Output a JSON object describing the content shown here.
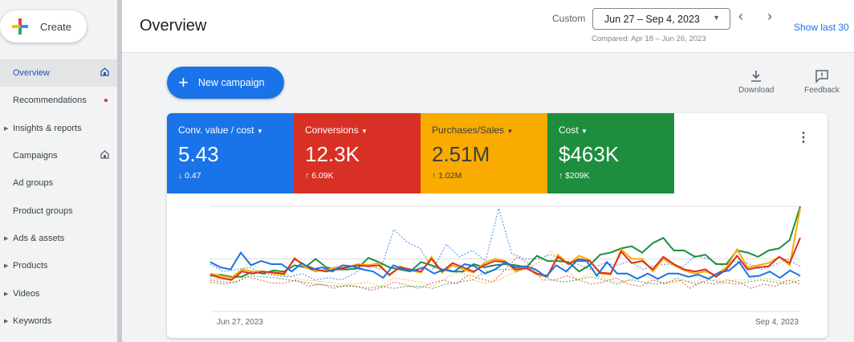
{
  "sidebar": {
    "create_label": "Create",
    "items": [
      {
        "label": "Overview",
        "active": true,
        "icon": "home-icon"
      },
      {
        "label": "Recommendations",
        "dot": true
      },
      {
        "label": "Insights & reports",
        "expandable": true
      },
      {
        "label": "Campaigns",
        "icon": "home-icon"
      },
      {
        "label": "Ad groups"
      },
      {
        "label": "Product groups"
      },
      {
        "label": "Ads & assets",
        "expandable": true
      },
      {
        "label": "Products",
        "expandable": true
      },
      {
        "label": "Videos",
        "expandable": true
      },
      {
        "label": "Keywords",
        "expandable": true
      }
    ]
  },
  "header": {
    "title": "Overview",
    "custom_label": "Custom",
    "date_range": "Jun 27 – Sep 4, 2023",
    "compared": "Compared: Apr 18 – Jun 26, 2023",
    "show_last": "Show last 30"
  },
  "toolbar": {
    "new_campaign": "New campaign",
    "download": "Download",
    "feedback": "Feedback"
  },
  "metrics": [
    {
      "label": "Conv. value / cost",
      "value": "5.43",
      "change": "↓ 0.47",
      "color": "#1a73e8"
    },
    {
      "label": "Conversions",
      "value": "12.3K",
      "change": "↑ 6.09K",
      "color": "#d93025"
    },
    {
      "label": "Purchases/Sales",
      "value": "2.51M",
      "change": "↑ 1.02M",
      "color": "#f9ab00"
    },
    {
      "label": "Cost",
      "value": "$463K",
      "change": "↑ $209K",
      "color": "#1e8e3e"
    }
  ],
  "chart_data": {
    "type": "line",
    "x_start": "Jun 27, 2023",
    "x_end": "Sep 4, 2023",
    "ylim": [
      0,
      100
    ],
    "grid": true,
    "series": [
      {
        "name": "Conv. value / cost",
        "color": "#1a73e8",
        "dashed": false,
        "values": [
          47,
          42,
          40,
          56,
          44,
          48,
          45,
          45,
          38,
          46,
          40,
          42,
          38,
          44,
          43,
          40,
          38,
          32,
          44,
          40,
          39,
          42,
          36,
          40,
          38,
          45,
          43,
          36,
          40,
          47,
          42,
          43,
          40,
          33,
          44,
          38,
          48,
          48,
          34,
          47,
          36,
          36,
          31,
          36,
          31,
          36,
          36,
          33,
          35,
          31,
          37,
          39,
          47,
          33,
          34,
          38,
          32,
          39,
          34
        ]
      },
      {
        "name": "Conversions",
        "color": "#d93025",
        "dashed": false,
        "values": [
          35,
          32,
          30,
          38,
          36,
          38,
          37,
          36,
          50,
          44,
          40,
          38,
          40,
          42,
          44,
          43,
          44,
          35,
          42,
          40,
          38,
          50,
          38,
          46,
          42,
          38,
          44,
          48,
          47,
          40,
          41,
          36,
          34,
          52,
          45,
          50,
          48,
          37,
          36,
          57,
          46,
          48,
          40,
          52,
          45,
          40,
          38,
          40,
          33,
          40,
          53,
          40,
          42,
          43,
          52,
          46,
          70
        ]
      },
      {
        "name": "Purchases/Sales",
        "color": "#f9ab00",
        "dashed": false,
        "values": [
          36,
          34,
          32,
          40,
          38,
          38,
          36,
          35,
          51,
          42,
          38,
          40,
          42,
          42,
          45,
          44,
          46,
          34,
          43,
          39,
          37,
          52,
          37,
          44,
          40,
          37,
          46,
          50,
          48,
          38,
          42,
          35,
          33,
          54,
          45,
          53,
          49,
          36,
          35,
          59,
          50,
          50,
          38,
          50,
          44,
          39,
          36,
          38,
          35,
          42,
          59,
          42,
          44,
          46,
          52,
          44,
          98
        ]
      },
      {
        "name": "Cost",
        "color": "#1e8e3e",
        "dashed": false,
        "values": [
          34,
          35,
          33,
          33,
          38,
          36,
          39,
          38,
          44,
          42,
          50,
          42,
          40,
          40,
          41,
          51,
          47,
          42,
          40,
          38,
          47,
          44,
          40,
          38,
          38,
          45,
          42,
          44,
          45,
          44,
          42,
          53,
          48,
          48,
          47,
          38,
          44,
          54,
          56,
          60,
          62,
          56,
          65,
          70,
          58,
          58,
          52,
          54,
          45,
          45,
          58,
          56,
          52,
          58,
          60,
          68,
          100
        ]
      },
      {
        "name": "Conv. value / cost (compared)",
        "color": "#1a73e8",
        "dashed": true,
        "values": [
          45,
          38,
          40,
          42,
          36,
          34,
          33,
          36,
          30,
          32,
          30,
          36,
          45,
          40,
          78,
          66,
          60,
          40,
          64,
          52,
          58,
          48,
          98,
          55,
          50,
          50,
          54,
          48,
          45,
          40,
          46,
          44,
          48,
          40,
          44,
          45,
          42,
          53,
          50,
          44,
          48,
          46,
          40,
          44,
          50,
          43
        ]
      },
      {
        "name": "Conversions (compared)",
        "color": "#d93025",
        "dashed": true,
        "values": [
          30,
          28,
          28,
          33,
          30,
          27,
          27,
          30,
          24,
          26,
          22,
          25,
          24,
          20,
          23,
          28,
          25,
          22,
          27,
          30,
          26,
          35,
          31,
          28,
          40,
          52,
          45,
          30,
          30,
          34,
          30,
          26,
          28,
          32,
          26,
          24,
          30,
          26,
          32,
          22,
          28,
          26,
          30,
          28,
          22,
          26,
          24,
          30,
          26
        ]
      },
      {
        "name": "Purchases/Sales (compared)",
        "color": "#f9ab00",
        "dashed": true,
        "values": [
          32,
          30,
          32,
          48,
          38,
          36,
          34,
          30,
          29,
          28,
          26,
          26,
          28,
          24,
          32,
          30,
          28,
          24,
          32,
          38,
          30,
          27,
          30,
          36,
          40,
          46,
          58,
          42,
          30,
          36,
          32,
          28,
          30,
          34,
          30,
          26,
          30,
          28,
          34,
          26,
          30,
          30,
          32,
          30,
          28,
          34
        ]
      },
      {
        "name": "Cost (compared)",
        "color": "#1e8e3e",
        "dashed": true,
        "values": [
          28,
          26,
          28,
          34,
          33,
          32,
          30,
          28,
          26,
          25,
          24,
          24,
          22,
          24,
          22,
          24,
          24,
          22,
          26,
          28,
          30,
          38,
          40,
          40,
          42,
          38,
          30,
          28,
          30,
          33,
          30,
          26,
          30,
          28,
          26,
          28,
          30,
          26,
          30,
          28,
          26,
          28,
          30,
          28,
          26,
          30
        ]
      }
    ]
  }
}
